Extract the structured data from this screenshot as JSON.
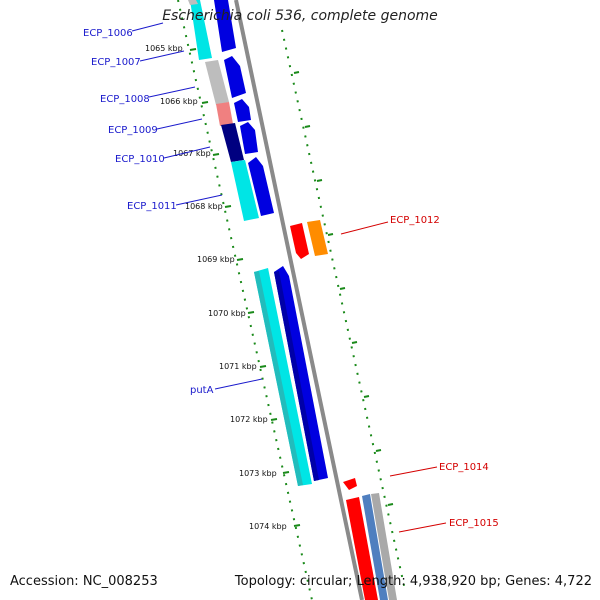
{
  "title": "Escherichia coli 536, complete genome",
  "footer": {
    "accession": "Accession: NC_008253",
    "topology": "Topology: circular; Length: 4,938,920 bp; Genes: 4,722"
  },
  "colors": {
    "backbone": "#8a8a8a",
    "tick": "#1a8a1a",
    "forward_label": "#1a1acc",
    "reverse_label": "#d40000",
    "cyan": "#00e5e5",
    "blue": "#0000e0"
  },
  "scale_ticks": [
    {
      "label": "1065 kbp"
    },
    {
      "label": "1066 kbp"
    },
    {
      "label": "1067 kbp"
    },
    {
      "label": "1068 kbp"
    },
    {
      "label": "1069 kbp"
    },
    {
      "label": "1070 kbp"
    },
    {
      "label": "1071 kbp"
    },
    {
      "label": "1072 kbp"
    },
    {
      "label": "1073 kbp"
    },
    {
      "label": "1074 kbp"
    }
  ],
  "gene_labels_forward": [
    "ECP_1006",
    "ECP_1007",
    "ECP_1008",
    "ECP_1009",
    "ECP_1010",
    "ECP_1011",
    "putA"
  ],
  "gene_labels_reverse": [
    "ECP_1012",
    "ECP_1014",
    "ECP_1015"
  ]
}
